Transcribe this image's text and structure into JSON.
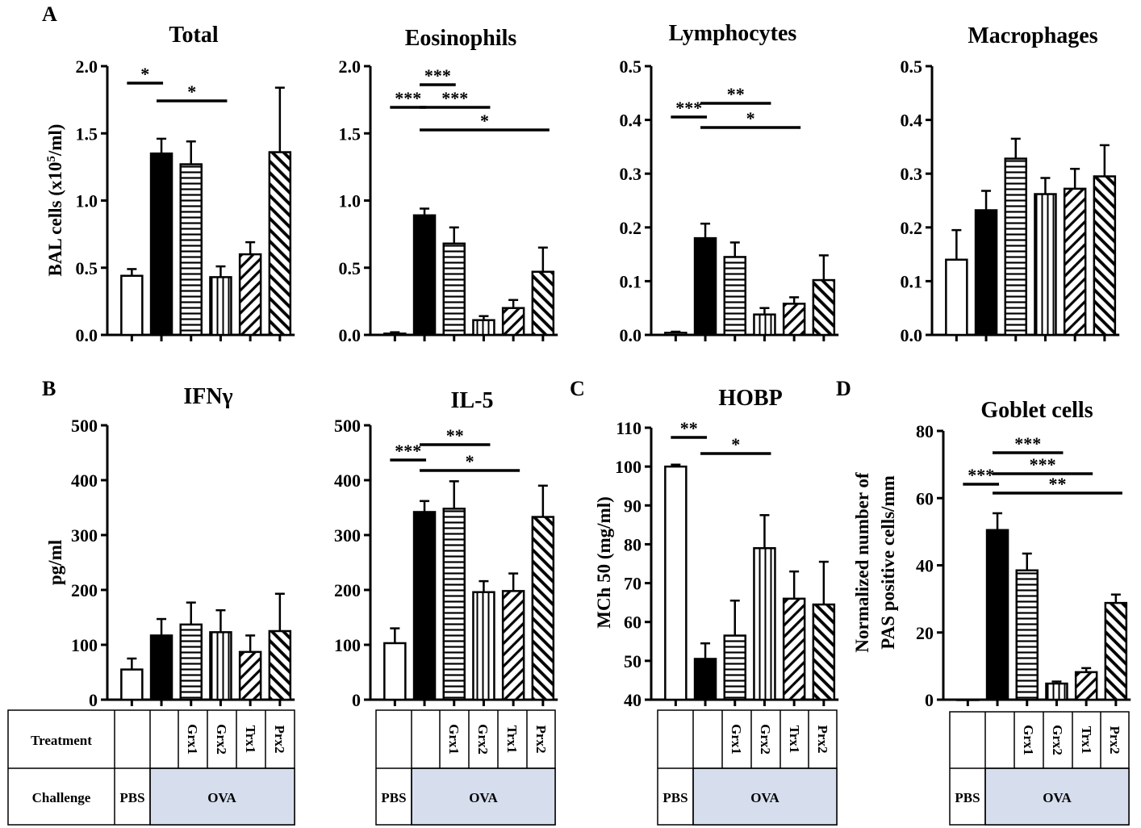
{
  "panel_letters": [
    "A",
    "B",
    "C",
    "D"
  ],
  "y_units": {
    "bal": "BAL cells (x10",
    "bal_sup": "5",
    "bal_end": "/ml)",
    "cytokine": "pg/ml",
    "hobp": "MCh 50 (mg/ml)",
    "goblet_line1": "Normalized number of",
    "goblet_line2": "PAS positive cells/mm"
  },
  "groups": [
    "PBS",
    "OVA",
    "OVA+Grx1",
    "OVA+Grx2",
    "OVA+Trx1",
    "OVA+Prx2"
  ],
  "table": {
    "treatment_label": "Treatment",
    "challenge_label": "Challenge",
    "treatments": [
      "",
      "",
      "Grx1",
      "Grx2",
      "Trx1",
      "Prx2"
    ],
    "challenge_pbs": "PBS",
    "challenge_ova": "OVA",
    "ova_fill": "#d6deee"
  },
  "chart_data": [
    {
      "type": "bar",
      "panel": "A",
      "title": "Total",
      "ylabel": "BAL cells (x10^5/ml)",
      "ylim": [
        0,
        2.0
      ],
      "ticks": [
        "0.0",
        "0.5",
        "1.0",
        "1.5",
        "2.0"
      ],
      "values": [
        0.44,
        1.35,
        1.27,
        0.43,
        0.6,
        1.36
      ],
      "errors": [
        0.05,
        0.11,
        0.17,
        0.08,
        0.09,
        0.48
      ],
      "significance": [
        {
          "from": 0,
          "to": 1,
          "label": "*"
        },
        {
          "from": 1,
          "to": 3,
          "label": "*"
        }
      ]
    },
    {
      "type": "bar",
      "panel": "A",
      "title": "Eosinophils",
      "ylabel": "",
      "ylim": [
        0,
        2.0
      ],
      "ticks": [
        "0.0",
        "0.5",
        "1.0",
        "1.5",
        "2.0"
      ],
      "values": [
        0.01,
        0.89,
        0.68,
        0.11,
        0.2,
        0.47
      ],
      "errors": [
        0.01,
        0.05,
        0.12,
        0.03,
        0.06,
        0.18
      ],
      "significance": [
        {
          "from": 0,
          "to": 1,
          "label": "***"
        },
        {
          "from": 1,
          "to": 2,
          "label": "***"
        },
        {
          "from": 1,
          "to": 3,
          "label": "***"
        },
        {
          "from": 1,
          "to": 5,
          "label": "*"
        }
      ]
    },
    {
      "type": "bar",
      "panel": "A",
      "title": "Lymphocytes",
      "ylabel": "",
      "ylim": [
        0,
        0.5
      ],
      "ticks": [
        "0.0",
        "0.1",
        "0.2",
        "0.3",
        "0.4",
        "0.5"
      ],
      "values": [
        0.004,
        0.18,
        0.145,
        0.038,
        0.058,
        0.102
      ],
      "errors": [
        0.002,
        0.027,
        0.027,
        0.012,
        0.012,
        0.046
      ],
      "significance": [
        {
          "from": 0,
          "to": 1,
          "label": "***"
        },
        {
          "from": 1,
          "to": 3,
          "label": "**"
        },
        {
          "from": 1,
          "to": 4,
          "label": "*"
        }
      ]
    },
    {
      "type": "bar",
      "panel": "A",
      "title": "Macrophages",
      "ylabel": "",
      "ylim": [
        0,
        0.5
      ],
      "ticks": [
        "0.0",
        "0.1",
        "0.2",
        "0.3",
        "0.4",
        "0.5"
      ],
      "values": [
        0.14,
        0.232,
        0.328,
        0.262,
        0.272,
        0.295
      ],
      "errors": [
        0.055,
        0.036,
        0.037,
        0.03,
        0.037,
        0.058
      ],
      "significance": []
    },
    {
      "type": "bar",
      "panel": "B",
      "title": "IFNγ",
      "ylabel": "pg/ml",
      "ylim": [
        0,
        500
      ],
      "ticks": [
        "0",
        "100",
        "200",
        "300",
        "400",
        "500"
      ],
      "values": [
        55,
        117,
        137,
        123,
        87,
        125
      ],
      "errors": [
        20,
        30,
        40,
        40,
        30,
        68
      ],
      "significance": []
    },
    {
      "type": "bar",
      "panel": "B",
      "title": "IL-5",
      "ylabel": "",
      "ylim": [
        0,
        500
      ],
      "ticks": [
        "0",
        "100",
        "200",
        "300",
        "400",
        "500"
      ],
      "values": [
        103,
        342,
        348,
        196,
        198,
        333
      ],
      "errors": [
        27,
        20,
        50,
        20,
        32,
        57
      ],
      "significance": [
        {
          "from": 0,
          "to": 1,
          "label": "***"
        },
        {
          "from": 1,
          "to": 3,
          "label": "**"
        },
        {
          "from": 1,
          "to": 4,
          "label": "*"
        }
      ]
    },
    {
      "type": "bar",
      "panel": "C",
      "title": "HOBP",
      "ylabel": "MCh 50 (mg/ml)",
      "ylim": [
        40,
        110
      ],
      "ticks": [
        "40",
        "50",
        "60",
        "70",
        "80",
        "90",
        "100",
        "110"
      ],
      "values": [
        100,
        50.5,
        56.5,
        79,
        66,
        64.5
      ],
      "errors": [
        0.5,
        4,
        9,
        8.5,
        7,
        11
      ],
      "significance": [
        {
          "from": 0,
          "to": 1,
          "label": "**"
        },
        {
          "from": 1,
          "to": 3,
          "label": "*"
        }
      ]
    },
    {
      "type": "bar",
      "panel": "D",
      "title": "Goblet cells",
      "ylabel": "Normalized number of PAS positive cells/mm",
      "ylim": [
        0,
        80
      ],
      "ticks": [
        "0",
        "20",
        "40",
        "60",
        "80"
      ],
      "values": [
        0,
        50.5,
        38.5,
        4.8,
        8.2,
        28.8
      ],
      "errors": [
        0,
        5,
        5,
        0.6,
        1.2,
        2.5
      ],
      "significance": [
        {
          "from": 0,
          "to": 1,
          "label": "***"
        },
        {
          "from": 1,
          "to": 3,
          "label": "***"
        },
        {
          "from": 1,
          "to": 4,
          "label": "***"
        },
        {
          "from": 1,
          "to": 5,
          "label": "**"
        }
      ]
    }
  ]
}
